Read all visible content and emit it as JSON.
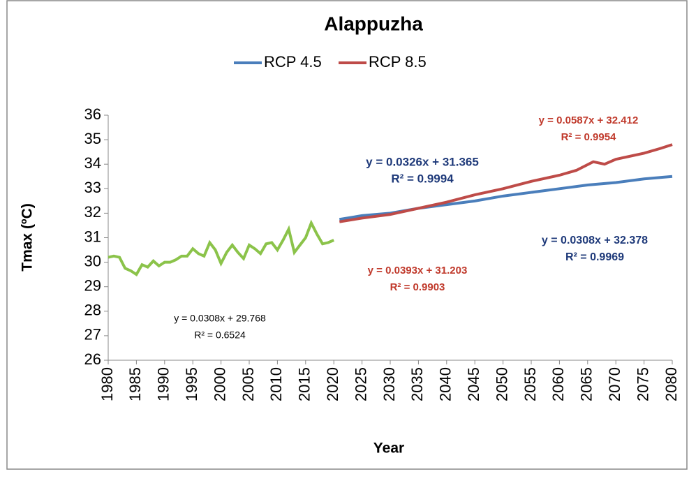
{
  "chart_data": {
    "type": "line",
    "title": "Alappuzha",
    "x_label": "Year",
    "y_label": "Tmax (ºC)",
    "xlim": [
      1980,
      2080
    ],
    "xticks": [
      1980,
      1985,
      1990,
      1995,
      2000,
      2005,
      2010,
      2015,
      2020,
      2025,
      2030,
      2035,
      2040,
      2045,
      2050,
      2055,
      2060,
      2065,
      2070,
      2075,
      2080
    ],
    "ylim": [
      26,
      36
    ],
    "yticks": [
      26,
      27,
      28,
      29,
      30,
      31,
      32,
      33,
      34,
      35,
      36
    ],
    "series": [
      {
        "color": "#8bc34a",
        "x": [
          1980,
          1981,
          1982,
          1983,
          1984,
          1985,
          1986,
          1987,
          1988,
          1989,
          1990,
          1991,
          1992,
          1993,
          1994,
          1995,
          1996,
          1997,
          1998,
          1999,
          2000,
          2001,
          2002,
          2003,
          2004,
          2005,
          2006,
          2007,
          2008,
          2009,
          2010,
          2011,
          2012,
          2013,
          2014,
          2015,
          2016,
          2017,
          2018,
          2019,
          2020
        ],
        "values": [
          30.2,
          30.25,
          30.2,
          29.75,
          29.65,
          29.5,
          29.9,
          29.8,
          30.05,
          29.85,
          30.0,
          30.0,
          30.1,
          30.25,
          30.25,
          30.55,
          30.35,
          30.25,
          30.8,
          30.5,
          29.95,
          30.4,
          30.7,
          30.4,
          30.15,
          30.7,
          30.55,
          30.35,
          30.75,
          30.8,
          30.5,
          30.9,
          31.35,
          30.4,
          30.7,
          31.0,
          31.6,
          31.15,
          30.75,
          30.8,
          30.9
        ]
      },
      {
        "name": "RCP 4.5",
        "color": "#4a7ebb",
        "x": [
          2021,
          2025,
          2030,
          2035,
          2040,
          2045,
          2050,
          2055,
          2060,
          2065,
          2070,
          2075,
          2080
        ],
        "values": [
          31.75,
          31.9,
          32.0,
          32.2,
          32.35,
          32.5,
          32.7,
          32.85,
          33.0,
          33.15,
          33.25,
          33.4,
          33.5
        ]
      },
      {
        "name": "RCP 8.5",
        "color": "#be4b48",
        "x": [
          2021,
          2025,
          2030,
          2035,
          2040,
          2045,
          2050,
          2055,
          2060,
          2063,
          2066,
          2068,
          2070,
          2075,
          2078,
          2080
        ],
        "values": [
          31.65,
          31.8,
          31.95,
          32.2,
          32.45,
          32.75,
          33.0,
          33.3,
          33.55,
          33.75,
          34.1,
          34.0,
          34.2,
          34.45,
          34.65,
          34.8
        ]
      }
    ],
    "annotations": [
      {
        "lines": [
          "y = 0.0308x + 29.768",
          "R² = 0.6524"
        ],
        "color": "#000000"
      },
      {
        "lines": [
          "y = 0.0326x + 31.365",
          "R² = 0.9994"
        ],
        "color": "#1f3a7a"
      },
      {
        "lines": [
          "y = 0.0587x + 32.412",
          "R² = 0.9954"
        ],
        "color": "#c0392b"
      },
      {
        "lines": [
          "y = 0.0308x + 32.378",
          "R² = 0.9969"
        ],
        "color": "#1f3a7a"
      },
      {
        "lines": [
          "y = 0.0393x + 31.203",
          "R² = 0.9903"
        ],
        "color": "#c0392b"
      }
    ]
  }
}
